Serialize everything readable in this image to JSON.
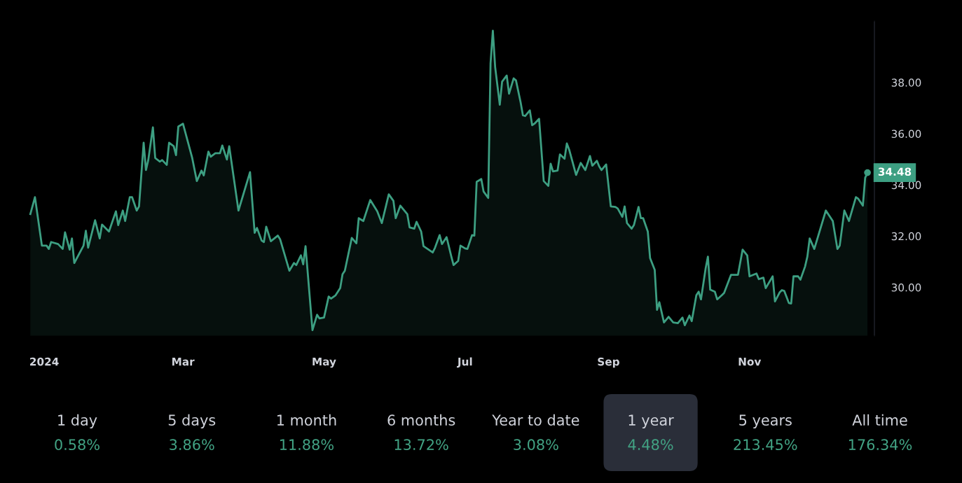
{
  "chart_data": [
    {
      "type": "area",
      "color": "#3d9f82",
      "x": [
        "2023-12-26",
        "2023-12-28",
        "2023-12-31",
        "2024-01-02",
        "2024-01-03",
        "2024-01-04",
        "2024-01-07",
        "2024-01-09",
        "2024-01-10",
        "2024-01-12",
        "2024-01-13",
        "2024-01-14",
        "2024-01-18",
        "2024-01-19",
        "2024-01-20",
        "2024-01-23",
        "2024-01-25",
        "2024-01-26",
        "2024-01-29",
        "2024-02-01",
        "2024-02-02",
        "2024-02-04",
        "2024-02-05",
        "2024-02-07",
        "2024-02-08",
        "2024-02-10",
        "2024-02-11",
        "2024-02-13",
        "2024-02-14",
        "2024-02-15",
        "2024-02-17",
        "2024-02-18",
        "2024-02-20",
        "2024-02-21",
        "2024-02-23",
        "2024-02-24",
        "2024-02-26",
        "2024-02-27",
        "2024-02-28",
        "2024-03-01",
        "2024-03-02",
        "2024-03-05",
        "2024-03-07",
        "2024-03-09",
        "2024-03-10",
        "2024-03-12",
        "2024-03-13",
        "2024-03-15",
        "2024-03-17",
        "2024-03-18",
        "2024-03-20",
        "2024-03-21",
        "2024-03-25",
        "2024-03-30",
        "2024-04-01",
        "2024-04-02",
        "2024-04-04",
        "2024-04-05",
        "2024-04-06",
        "2024-04-08",
        "2024-04-11",
        "2024-04-12",
        "2024-04-16",
        "2024-04-18",
        "2024-04-19",
        "2024-04-21",
        "2024-04-22",
        "2024-04-23",
        "2024-04-26",
        "2024-04-28",
        "2024-04-29",
        "2024-05-01",
        "2024-05-03",
        "2024-05-04",
        "2024-05-06",
        "2024-05-08",
        "2024-05-09",
        "2024-05-10",
        "2024-05-13",
        "2024-05-15",
        "2024-05-16",
        "2024-05-18",
        "2024-05-20",
        "2024-05-21",
        "2024-05-24",
        "2024-05-26",
        "2024-05-29",
        "2024-05-31",
        "2024-06-01",
        "2024-06-03",
        "2024-06-06",
        "2024-06-07",
        "2024-06-09",
        "2024-06-10",
        "2024-06-12",
        "2024-06-13",
        "2024-06-17",
        "2024-06-18",
        "2024-06-20",
        "2024-06-21",
        "2024-06-23",
        "2024-06-25",
        "2024-06-26",
        "2024-06-28",
        "2024-06-29",
        "2024-07-01",
        "2024-07-02",
        "2024-07-04",
        "2024-07-05",
        "2024-07-06",
        "2024-07-08",
        "2024-07-09",
        "2024-07-11",
        "2024-07-12",
        "2024-07-13",
        "2024-07-14",
        "2024-07-16",
        "2024-07-17",
        "2024-07-19",
        "2024-07-20",
        "2024-07-22",
        "2024-07-23",
        "2024-07-25",
        "2024-07-26",
        "2024-07-27",
        "2024-07-29",
        "2024-07-30",
        "2024-07-31",
        "2024-08-02",
        "2024-08-04",
        "2024-08-06",
        "2024-08-07",
        "2024-08-08",
        "2024-08-10",
        "2024-08-11",
        "2024-08-13",
        "2024-08-14",
        "2024-08-15",
        "2024-08-18",
        "2024-08-20",
        "2024-08-22",
        "2024-08-24",
        "2024-08-25",
        "2024-08-27",
        "2024-08-28",
        "2024-08-29",
        "2024-08-31",
        "2024-09-02",
        "2024-09-04",
        "2024-09-05",
        "2024-09-07",
        "2024-09-08",
        "2024-09-09",
        "2024-09-11",
        "2024-09-12",
        "2024-09-14",
        "2024-09-15",
        "2024-09-16",
        "2024-09-18",
        "2024-09-19",
        "2024-09-21",
        "2024-09-22",
        "2024-09-23",
        "2024-09-25",
        "2024-09-27",
        "2024-09-29",
        "2024-10-01",
        "2024-10-03",
        "2024-10-04",
        "2024-10-06",
        "2024-10-07",
        "2024-10-09",
        "2024-10-10",
        "2024-10-11",
        "2024-10-13",
        "2024-10-14",
        "2024-10-15",
        "2024-10-17",
        "2024-10-18",
        "2024-10-20",
        "2024-10-21",
        "2024-10-24",
        "2024-10-27",
        "2024-10-29",
        "2024-10-31",
        "2024-11-01",
        "2024-11-04",
        "2024-11-05",
        "2024-11-07",
        "2024-11-08",
        "2024-11-11",
        "2024-11-12",
        "2024-11-14",
        "2024-11-15",
        "2024-11-16",
        "2024-11-18",
        "2024-11-19",
        "2024-11-20",
        "2024-11-22",
        "2024-11-23",
        "2024-11-25",
        "2024-11-26",
        "2024-11-27",
        "2024-11-29",
        "2024-12-04",
        "2024-12-07",
        "2024-12-09",
        "2024-12-10",
        "2024-12-12",
        "2024-12-14",
        "2024-12-17",
        "2024-12-18",
        "2024-12-20",
        "2024-12-21",
        "2024-12-22"
      ],
      "values": [
        32.86,
        33.52,
        31.63,
        31.63,
        31.5,
        31.77,
        31.69,
        31.5,
        32.15,
        31.47,
        31.91,
        30.95,
        31.63,
        32.21,
        31.55,
        32.62,
        31.91,
        32.45,
        32.18,
        32.97,
        32.43,
        33.0,
        32.59,
        33.52,
        33.52,
        33.0,
        33.16,
        35.65,
        34.58,
        34.97,
        36.25,
        35.05,
        34.91,
        34.97,
        34.78,
        35.65,
        35.51,
        35.16,
        36.28,
        36.39,
        36.06,
        35.05,
        34.15,
        34.56,
        34.37,
        35.3,
        35.1,
        35.24,
        35.24,
        35.54,
        34.99,
        35.51,
        33.0,
        34.5,
        32.13,
        32.32,
        31.83,
        31.77,
        32.37,
        31.8,
        32.02,
        31.88,
        30.65,
        30.95,
        30.87,
        31.25,
        30.9,
        31.61,
        28.33,
        28.93,
        28.79,
        28.82,
        29.64,
        29.56,
        29.69,
        29.97,
        30.51,
        30.65,
        31.93,
        31.72,
        32.7,
        32.59,
        33.14,
        33.41,
        32.97,
        32.51,
        33.63,
        33.38,
        32.7,
        33.19,
        32.86,
        32.34,
        32.29,
        32.56,
        32.18,
        31.61,
        31.36,
        31.55,
        32.04,
        31.69,
        31.96,
        31.22,
        30.87,
        31.03,
        31.63,
        31.52,
        31.5,
        32.04,
        32.02,
        34.12,
        34.23,
        33.74,
        33.49,
        38.74,
        40.02,
        38.6,
        37.13,
        38.03,
        38.27,
        37.56,
        38.16,
        38.08,
        37.23,
        36.72,
        36.69,
        36.91,
        36.33,
        36.39,
        36.58,
        34.15,
        33.96,
        34.83,
        34.53,
        34.56,
        35.19,
        35.02,
        35.62,
        35.38,
        34.39,
        34.86,
        34.58,
        35.13,
        34.75,
        34.94,
        34.72,
        34.58,
        34.8,
        33.16,
        33.14,
        33.08,
        32.75,
        33.16,
        32.51,
        32.29,
        32.43,
        33.14,
        32.7,
        32.7,
        32.18,
        31.14,
        30.68,
        29.12,
        29.42,
        28.63,
        28.85,
        28.63,
        28.6,
        28.82,
        28.52,
        28.9,
        28.68,
        29.69,
        29.83,
        29.53,
        30.73,
        31.2,
        29.91,
        29.83,
        29.53,
        29.69,
        29.78,
        30.49,
        30.49,
        31.47,
        31.25,
        30.43,
        30.54,
        30.32,
        30.38,
        29.97,
        30.43,
        29.45,
        29.8,
        29.89,
        29.86,
        29.39,
        29.37,
        30.43,
        30.43,
        30.3,
        30.81,
        31.2,
        31.91,
        31.5,
        33.0,
        32.59,
        31.5,
        31.63,
        33.0,
        32.59,
        33.52,
        33.46,
        33.19,
        34.28,
        34.48
      ],
      "xlim": [
        "2023-12-25",
        "2024-12-25"
      ],
      "xticks": [
        {
          "value": "2024-01-01",
          "label": "2024"
        },
        {
          "value": "2024-03-01",
          "label": "Mar"
        },
        {
          "value": "2024-05-01",
          "label": "May"
        },
        {
          "value": "2024-07-01",
          "label": "Jul"
        },
        {
          "value": "2024-09-01",
          "label": "Sep"
        },
        {
          "value": "2024-11-01",
          "label": "Nov"
        }
      ],
      "ylim": [
        28.1,
        40.4
      ],
      "yticks": [
        {
          "value": 30,
          "label": "30.00"
        },
        {
          "value": 32,
          "label": "32.00"
        },
        {
          "value": 34,
          "label": "34.00"
        },
        {
          "value": 36,
          "label": "36.00"
        },
        {
          "value": 38,
          "label": "38.00"
        }
      ],
      "annotations": [
        {
          "text": "34.48",
          "x": "2024-12-22",
          "y": 34.48
        }
      ]
    },
    {
      "type": "other",
      "categories": [
        "1 day",
        "5 days",
        "1 month",
        "6 months",
        "Year to date",
        "1 year",
        "5 years",
        "All time"
      ],
      "value_labels": [
        "0.58%",
        "3.86%",
        "11.88%",
        "13.72%",
        "3.08%",
        "4.48%",
        "213.45%",
        "176.34%"
      ],
      "colors": [
        "#000000",
        "#000000",
        "#000000",
        "#000000",
        "#000000",
        "#2a2e39",
        "#000000",
        "#000000"
      ]
    }
  ]
}
